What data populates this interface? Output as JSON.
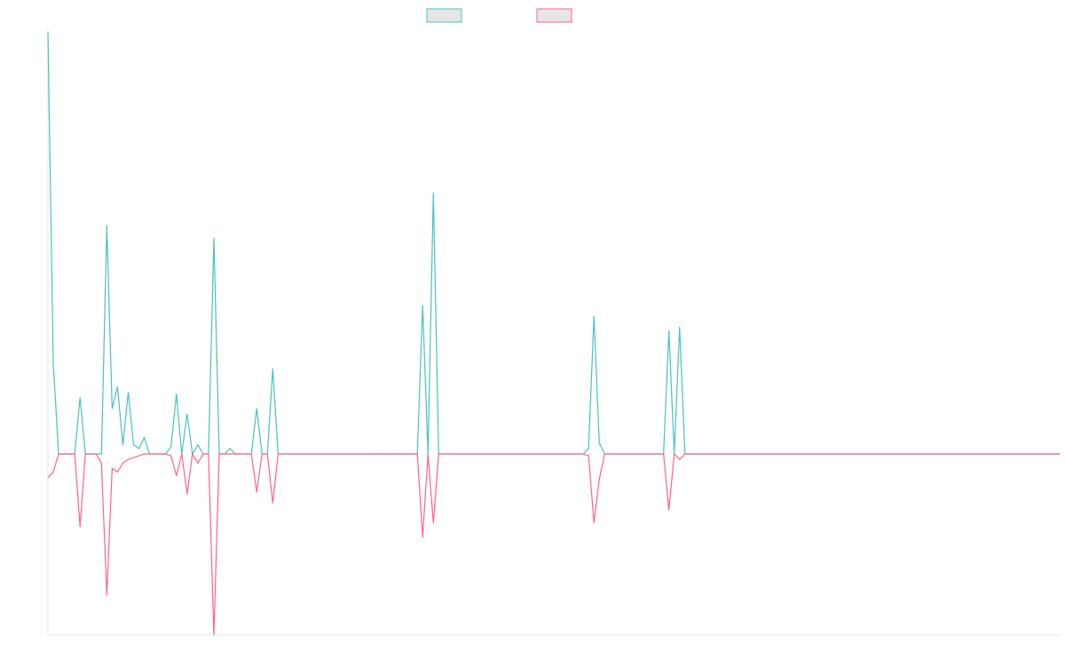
{
  "chart_data": {
    "type": "line",
    "title": "",
    "xlabel": "",
    "ylabel": "",
    "legend_position": "top-center",
    "grid": false,
    "ylim": [
      -100,
      233
    ],
    "x_count": 190,
    "series": [
      {
        "color": "#4bc0c0",
        "fill": "#e5e5e5",
        "points": [
          [
            0,
            233
          ],
          [
            1,
            50
          ],
          [
            2,
            0
          ],
          [
            3,
            0
          ],
          [
            4,
            0
          ],
          [
            5,
            0
          ],
          [
            6,
            31
          ],
          [
            7,
            0
          ],
          [
            8,
            0
          ],
          [
            9,
            0
          ],
          [
            10,
            0
          ],
          [
            11,
            126
          ],
          [
            12,
            25
          ],
          [
            13,
            37
          ],
          [
            14,
            5
          ],
          [
            15,
            34
          ],
          [
            16,
            5
          ],
          [
            17,
            3
          ],
          [
            18,
            9
          ],
          [
            19,
            0
          ],
          [
            22,
            0
          ],
          [
            23,
            4
          ],
          [
            24,
            33
          ],
          [
            25,
            0
          ],
          [
            26,
            22
          ],
          [
            27,
            0
          ],
          [
            28,
            5
          ],
          [
            29,
            0
          ],
          [
            30,
            0
          ],
          [
            31,
            119
          ],
          [
            32,
            0
          ],
          [
            33,
            0
          ],
          [
            34,
            3
          ],
          [
            35,
            0
          ],
          [
            38,
            0
          ],
          [
            39,
            25
          ],
          [
            40,
            0
          ],
          [
            41,
            0
          ],
          [
            42,
            47
          ],
          [
            43,
            0
          ],
          [
            60,
            0
          ],
          [
            61,
            0
          ],
          [
            62,
            0
          ],
          [
            63,
            0
          ],
          [
            64,
            0
          ],
          [
            65,
            0
          ],
          [
            66,
            0
          ],
          [
            67,
            0
          ],
          [
            68,
            0
          ],
          [
            69,
            0
          ],
          [
            70,
            82
          ],
          [
            71,
            0
          ],
          [
            72,
            144
          ],
          [
            73,
            0
          ],
          [
            100,
            0
          ],
          [
            101,
            3
          ],
          [
            102,
            76
          ],
          [
            103,
            6
          ],
          [
            104,
            0
          ],
          [
            115,
            0
          ],
          [
            116,
            68
          ],
          [
            117,
            0
          ],
          [
            118,
            70
          ],
          [
            119,
            0
          ],
          [
            120,
            0
          ],
          [
            189,
            0
          ]
        ]
      },
      {
        "color": "#ff6384",
        "fill": "#e5e5e5",
        "points": [
          [
            0,
            -13
          ],
          [
            1,
            -10
          ],
          [
            2,
            0
          ],
          [
            3,
            0
          ],
          [
            4,
            0
          ],
          [
            5,
            0
          ],
          [
            6,
            -40
          ],
          [
            7,
            0
          ],
          [
            8,
            0
          ],
          [
            9,
            0
          ],
          [
            10,
            -5
          ],
          [
            11,
            -78
          ],
          [
            12,
            -8
          ],
          [
            13,
            -10
          ],
          [
            14,
            -5
          ],
          [
            15,
            -3
          ],
          [
            16,
            -2
          ],
          [
            17,
            -1
          ],
          [
            18,
            0
          ],
          [
            19,
            0
          ],
          [
            22,
            0
          ],
          [
            23,
            -1
          ],
          [
            24,
            -12
          ],
          [
            25,
            0
          ],
          [
            26,
            -22
          ],
          [
            27,
            0
          ],
          [
            28,
            -5
          ],
          [
            29,
            0
          ],
          [
            30,
            0
          ],
          [
            31,
            -100
          ],
          [
            32,
            0
          ],
          [
            33,
            0
          ],
          [
            34,
            0
          ],
          [
            35,
            0
          ],
          [
            38,
            0
          ],
          [
            39,
            -21
          ],
          [
            40,
            0
          ],
          [
            41,
            0
          ],
          [
            42,
            -27
          ],
          [
            43,
            0
          ],
          [
            60,
            0
          ],
          [
            61,
            0
          ],
          [
            62,
            0
          ],
          [
            63,
            0
          ],
          [
            64,
            0
          ],
          [
            65,
            0
          ],
          [
            66,
            0
          ],
          [
            67,
            0
          ],
          [
            68,
            0
          ],
          [
            69,
            0
          ],
          [
            70,
            -46
          ],
          [
            71,
            0
          ],
          [
            72,
            -38
          ],
          [
            73,
            0
          ],
          [
            100,
            0
          ],
          [
            101,
            -1
          ],
          [
            102,
            -38
          ],
          [
            103,
            -14
          ],
          [
            104,
            0
          ],
          [
            115,
            0
          ],
          [
            116,
            -31
          ],
          [
            117,
            0
          ],
          [
            118,
            -3
          ],
          [
            119,
            0
          ],
          [
            120,
            0
          ],
          [
            189,
            0
          ]
        ]
      }
    ]
  }
}
